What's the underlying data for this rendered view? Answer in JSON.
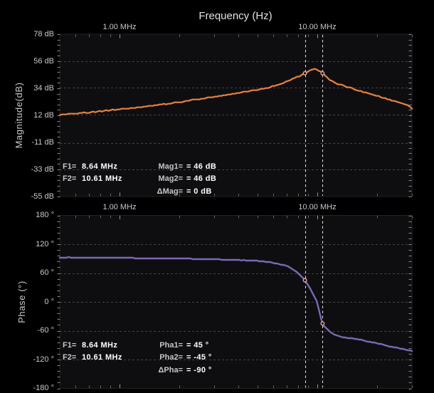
{
  "header": {
    "title": "Frequency (Hz)"
  },
  "colors": {
    "background": "#000000",
    "plot_background": "#0e0e11",
    "grid_line": "#434347",
    "magnitude_trace": "#e8823e",
    "phase_trace": "#7d68b5",
    "cursor_line": "#d8d8d8",
    "marker_stroke": "#f2aaaa",
    "tick_text": "#c8c8c8",
    "readout_label": "#c6c6c6",
    "readout_value": "#ffffff"
  },
  "magnitude_plot": {
    "ylabel": "Magnitude(dB)",
    "ytick_labels": [
      "78 dB",
      "56 dB",
      "34 dB",
      "12 dB",
      "-11 dB",
      "-33 dB",
      "-55 dB"
    ],
    "xtick_labels": [
      "1.00 MHz",
      "10.00 MHz"
    ],
    "readout": {
      "f1_label": "F1=",
      "f1_value": "8.64 MHz",
      "f2_label": "F2=",
      "f2_value": "10.61 MHz",
      "v1_label": "Mag1=",
      "v1_value": "= 46 dB",
      "v2_label": "Mag2=",
      "v2_value": "= 46 dB",
      "dv_label": "ΔMag=",
      "dv_value": "= 0 dB"
    }
  },
  "phase_plot": {
    "ylabel": "Phase (°)",
    "ytick_labels": [
      "180 °",
      "120 °",
      "60 °",
      "0 °",
      "-60 °",
      "-120 °",
      "-180 °"
    ],
    "xtick_labels": [
      "1.00 MHz",
      "10.00 MHz"
    ],
    "readout": {
      "f1_label": "F1=",
      "f1_value": "8.64 MHz",
      "f2_label": "F2=",
      "f2_value": "10.61 MHz",
      "v1_label": "Pha1=",
      "v1_value": "= 45 °",
      "v2_label": "Pha2=",
      "v2_value": "= -45 °",
      "dv_label": "ΔPha=",
      "dv_value": "= -90 °"
    }
  },
  "chart_data": [
    {
      "type": "line",
      "name": "magnitude",
      "title": "Frequency (Hz)",
      "xlabel": "Frequency (Hz)",
      "ylabel": "Magnitude(dB)",
      "x_scale": "log",
      "xlim_mhz": [
        0.5,
        30
      ],
      "ylim": [
        -55,
        78
      ],
      "yticks": [
        78,
        56,
        34,
        12,
        -11,
        -33,
        -55
      ],
      "xticks_mhz": [
        1,
        10
      ],
      "x_minor_ticks_mhz": [
        0.6,
        0.7,
        0.8,
        0.9,
        2,
        3,
        4,
        5,
        6,
        7,
        8,
        9,
        20,
        30
      ],
      "grid": true,
      "cursors_mhz": [
        8.64,
        10.61
      ],
      "markers": [
        {
          "x_mhz": 8.64,
          "y": 46
        },
        {
          "x_mhz": 10.61,
          "y": 46
        }
      ],
      "x_mhz": [
        0.5,
        0.513,
        0.526,
        0.54,
        0.554,
        0.569,
        0.584,
        0.599,
        0.614,
        0.63,
        0.647,
        0.664,
        0.681,
        0.699,
        0.717,
        0.736,
        0.755,
        0.775,
        0.795,
        0.816,
        0.837,
        0.859,
        0.881,
        0.904,
        0.928,
        0.952,
        0.977,
        1.002,
        1.028,
        1.055,
        1.083,
        1.111,
        1.14,
        1.17,
        1.2,
        1.231,
        1.263,
        1.296,
        1.33,
        1.365,
        1.401,
        1.437,
        1.475,
        1.513,
        1.553,
        1.593,
        1.635,
        1.677,
        1.721,
        1.766,
        1.812,
        1.859,
        1.908,
        1.957,
        2.008,
        2.061,
        2.115,
        2.17,
        2.226,
        2.284,
        2.344,
        2.405,
        2.468,
        2.532,
        2.598,
        2.666,
        2.736,
        2.807,
        2.88,
        2.955,
        3.033,
        3.112,
        3.193,
        3.276,
        3.362,
        3.449,
        3.539,
        3.632,
        3.726,
        3.823,
        3.923,
        4.026,
        4.131,
        4.238,
        4.349,
        4.462,
        4.579,
        4.698,
        4.821,
        4.946,
        5.075,
        5.208,
        5.344,
        5.483,
        5.626,
        5.773,
        5.923,
        6.078,
        6.236,
        6.399,
        6.566,
        6.737,
        6.913,
        7.093,
        7.278,
        7.468,
        7.663,
        7.863,
        8.068,
        8.279,
        8.494,
        8.716,
        8.943,
        9.177,
        9.416,
        9.662,
        9.914,
        10.172,
        10.438,
        10.71,
        10.989,
        11.276,
        11.57,
        11.872,
        12.182,
        12.499,
        12.825,
        13.16,
        13.503,
        13.855,
        14.217,
        14.588,
        14.968,
        15.359,
        15.759,
        16.17,
        16.592,
        17.025,
        17.469,
        17.925,
        18.392,
        18.872,
        19.364,
        19.87,
        20.388,
        20.92,
        21.465,
        22.025,
        22.6,
        23.189,
        23.794,
        24.415,
        25.052,
        25.705,
        26.376,
        27.064,
        27.77,
        28.494,
        29.237,
        30.0
      ],
      "y": [
        11.667,
        12.25,
        12.25,
        12.25,
        12.833,
        12.833,
        12.833,
        12.833,
        12.833,
        13.417,
        13.417,
        14.0,
        13.417,
        13.417,
        14.0,
        14.583,
        14.0,
        14.583,
        15.167,
        14.583,
        15.167,
        15.75,
        15.167,
        15.75,
        16.333,
        15.75,
        16.333,
        16.333,
        16.917,
        16.917,
        16.917,
        16.917,
        17.5,
        17.5,
        17.5,
        18.083,
        18.083,
        18.083,
        18.667,
        18.667,
        19.25,
        19.25,
        19.25,
        19.833,
        19.833,
        20.417,
        20.417,
        21.0,
        20.417,
        21.0,
        21.0,
        21.583,
        22.167,
        22.167,
        22.167,
        22.167,
        22.75,
        23.333,
        23.333,
        23.917,
        24.5,
        24.5,
        24.5,
        24.5,
        25.083,
        25.083,
        25.667,
        26.25,
        26.25,
        26.25,
        26.833,
        26.833,
        27.417,
        27.417,
        28.0,
        28.0,
        28.583,
        28.583,
        29.167,
        29.167,
        29.75,
        29.75,
        30.333,
        30.917,
        30.917,
        30.917,
        31.5,
        32.083,
        32.083,
        32.083,
        32.667,
        33.25,
        33.25,
        33.833,
        33.833,
        34.417,
        35.583,
        35.583,
        36.167,
        36.75,
        37.333,
        37.917,
        39.083,
        39.667,
        40.25,
        41.417,
        42.0,
        43.167,
        43.167,
        44.333,
        45.5,
        46.083,
        47.25,
        48.417,
        49.0,
        49.583,
        49.0,
        47.833,
        47.25,
        45.5,
        43.75,
        42.0,
        40.25,
        39.667,
        38.5,
        37.333,
        36.75,
        36.75,
        36.167,
        35.0,
        34.417,
        34.417,
        33.833,
        32.667,
        32.083,
        31.5,
        31.5,
        30.333,
        30.333,
        29.75,
        29.167,
        28.583,
        28.0,
        27.417,
        27.417,
        26.25,
        25.667,
        25.667,
        24.5,
        24.5,
        23.333,
        23.333,
        22.75,
        22.167,
        21.583,
        21.0,
        20.417,
        19.833,
        18.667,
        16.917
      ]
    },
    {
      "type": "line",
      "name": "phase",
      "xlabel": "Frequency (Hz)",
      "ylabel": "Phase (°)",
      "x_scale": "log",
      "xlim_mhz": [
        0.5,
        30
      ],
      "ylim": [
        -180,
        180
      ],
      "yticks": [
        180,
        120,
        60,
        0,
        -60,
        -120,
        -180
      ],
      "xticks_mhz": [
        1,
        10
      ],
      "x_minor_ticks_mhz": [
        0.6,
        0.7,
        0.8,
        0.9,
        2,
        3,
        4,
        5,
        6,
        7,
        8,
        9,
        20,
        30
      ],
      "grid": true,
      "cursors_mhz": [
        8.64,
        10.61
      ],
      "markers": [
        {
          "x_mhz": 8.64,
          "y": 45
        },
        {
          "x_mhz": 10.61,
          "y": -45
        }
      ],
      "x_mhz": [
        0.5,
        0.513,
        0.526,
        0.54,
        0.554,
        0.569,
        0.584,
        0.599,
        0.614,
        0.63,
        0.647,
        0.664,
        0.681,
        0.699,
        0.717,
        0.736,
        0.755,
        0.775,
        0.795,
        0.816,
        0.837,
        0.859,
        0.881,
        0.904,
        0.928,
        0.952,
        0.977,
        1.002,
        1.028,
        1.055,
        1.083,
        1.111,
        1.14,
        1.17,
        1.2,
        1.231,
        1.263,
        1.296,
        1.33,
        1.365,
        1.401,
        1.437,
        1.475,
        1.513,
        1.553,
        1.593,
        1.635,
        1.677,
        1.721,
        1.766,
        1.812,
        1.859,
        1.908,
        1.957,
        2.008,
        2.061,
        2.115,
        2.17,
        2.226,
        2.284,
        2.344,
        2.405,
        2.468,
        2.532,
        2.598,
        2.666,
        2.736,
        2.807,
        2.88,
        2.955,
        3.033,
        3.112,
        3.193,
        3.276,
        3.362,
        3.449,
        3.539,
        3.632,
        3.726,
        3.823,
        3.923,
        4.026,
        4.131,
        4.238,
        4.349,
        4.462,
        4.579,
        4.698,
        4.821,
        4.946,
        5.075,
        5.208,
        5.344,
        5.483,
        5.626,
        5.773,
        5.923,
        6.078,
        6.236,
        6.399,
        6.566,
        6.737,
        6.913,
        7.093,
        7.278,
        7.468,
        7.663,
        7.863,
        8.068,
        8.279,
        8.494,
        8.716,
        8.943,
        9.177,
        9.416,
        9.662,
        9.914,
        10.172,
        10.438,
        10.71,
        10.989,
        11.276,
        11.57,
        11.872,
        12.182,
        12.499,
        12.825,
        13.16,
        13.503,
        13.855,
        14.217,
        14.588,
        14.968,
        15.359,
        15.759,
        16.17,
        16.592,
        17.025,
        17.469,
        17.925,
        18.392,
        18.872,
        19.364,
        19.87,
        20.388,
        20.92,
        21.465,
        22.025,
        22.6,
        23.189,
        23.794,
        24.415,
        25.052,
        25.705,
        26.376,
        27.064,
        27.77,
        28.494,
        29.237,
        30.0
      ],
      "y": [
        91.852,
        91.852,
        91.852,
        91.852,
        93.333,
        91.852,
        91.852,
        91.852,
        91.852,
        91.852,
        91.852,
        91.852,
        91.852,
        91.852,
        91.852,
        91.852,
        91.852,
        91.852,
        91.852,
        91.852,
        91.852,
        91.852,
        91.852,
        91.852,
        91.852,
        91.852,
        91.852,
        91.852,
        91.852,
        91.852,
        91.852,
        91.852,
        91.852,
        91.852,
        90.37,
        90.37,
        90.37,
        90.37,
        90.37,
        90.37,
        90.37,
        90.37,
        90.37,
        90.37,
        90.37,
        90.37,
        90.37,
        90.37,
        90.37,
        90.37,
        90.37,
        90.37,
        90.37,
        90.37,
        90.37,
        90.37,
        90.37,
        90.37,
        90.37,
        90.37,
        88.889,
        88.889,
        88.889,
        88.889,
        88.889,
        88.889,
        88.889,
        88.889,
        88.889,
        88.889,
        88.889,
        88.889,
        88.889,
        87.407,
        87.407,
        87.407,
        87.407,
        87.407,
        87.407,
        87.407,
        87.407,
        87.407,
        85.926,
        87.407,
        85.926,
        85.926,
        85.926,
        85.926,
        85.926,
        85.926,
        84.444,
        84.444,
        84.444,
        82.963,
        82.963,
        82.963,
        81.481,
        80.0,
        80.0,
        78.519,
        77.037,
        77.037,
        75.556,
        74.074,
        71.111,
        68.148,
        65.185,
        62.222,
        57.778,
        53.333,
        48.889,
        42.963,
        35.556,
        28.148,
        19.259,
        10.37,
        1.481,
        -16.296,
        -35.556,
        -48.889,
        -53.333,
        -57.778,
        -62.222,
        -65.185,
        -68.148,
        -69.63,
        -71.111,
        -72.593,
        -74.074,
        -74.074,
        -75.556,
        -75.556,
        -75.556,
        -77.037,
        -77.037,
        -78.519,
        -78.519,
        -80.0,
        -81.481,
        -82.963,
        -82.963,
        -84.444,
        -84.444,
        -85.926,
        -87.407,
        -87.407,
        -88.889,
        -90.37,
        -91.852,
        -93.333,
        -93.333,
        -94.815,
        -94.815,
        -96.296,
        -97.778,
        -97.778,
        -99.259,
        -100.741,
        -100.741,
        -102.222
      ]
    }
  ]
}
